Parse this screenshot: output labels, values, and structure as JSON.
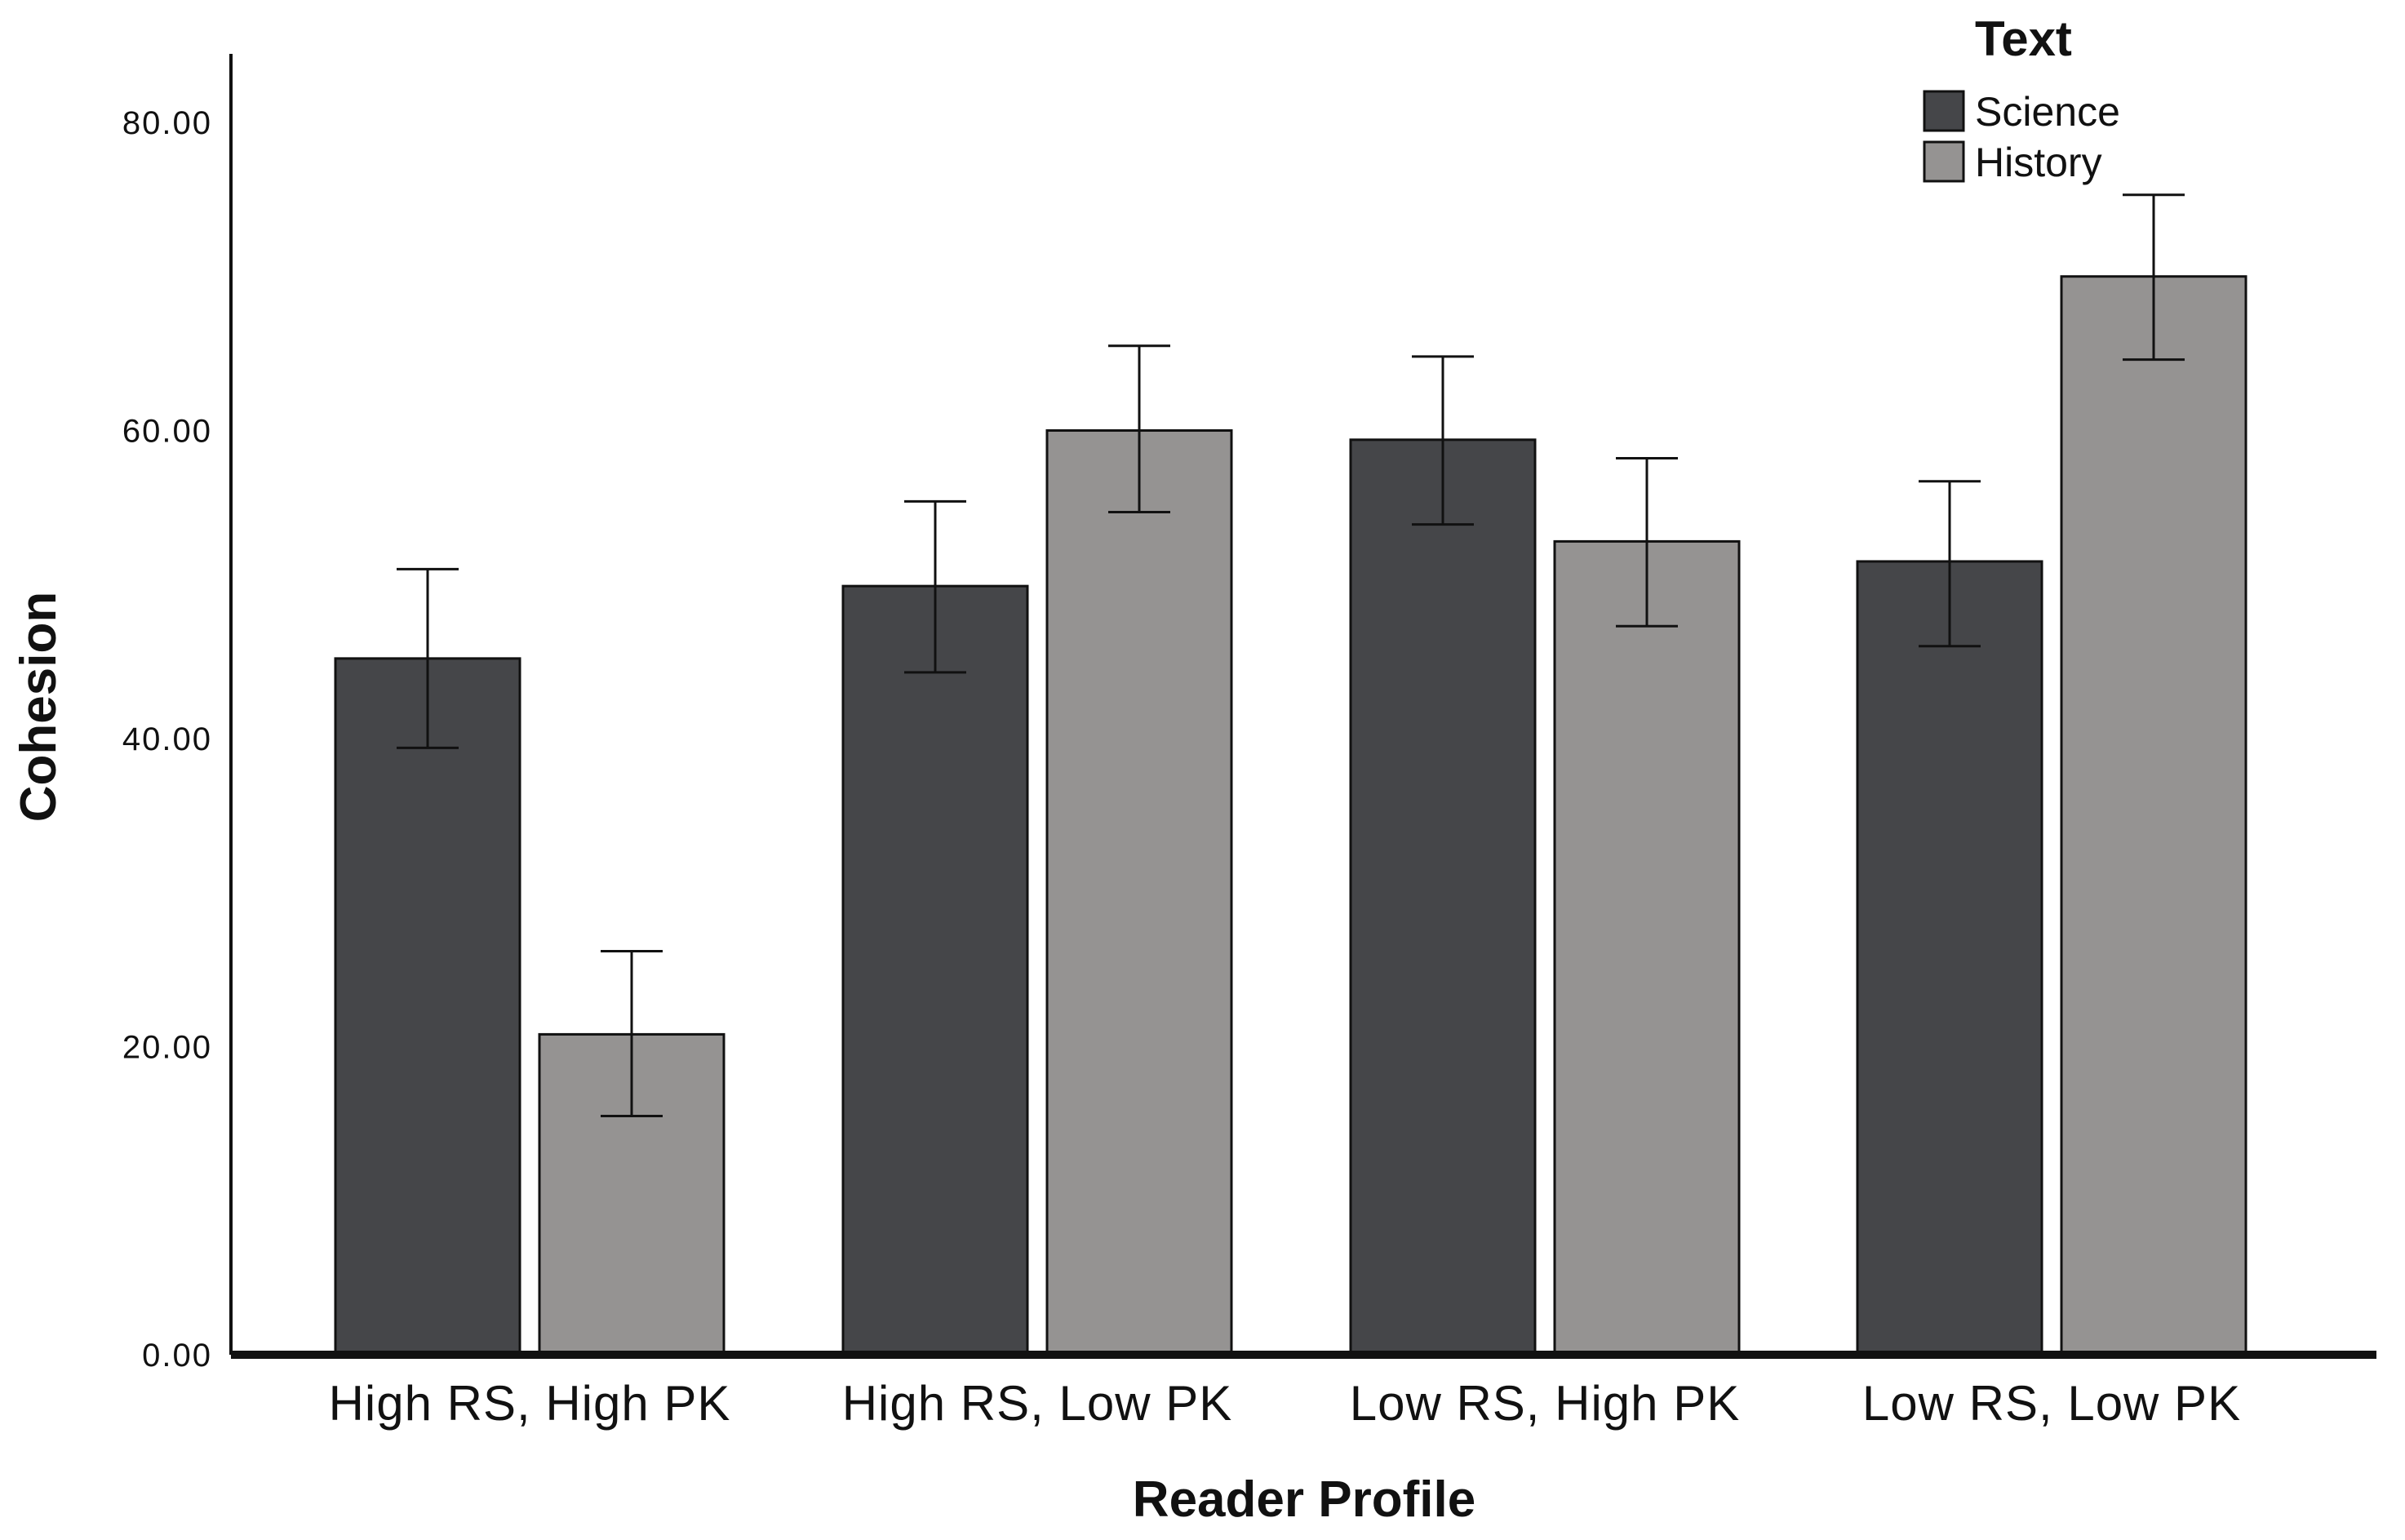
{
  "chart_data": {
    "type": "bar",
    "title": "",
    "xlabel": "Reader Profile",
    "ylabel": "Cohesion",
    "ylim": [
      0,
      85
    ],
    "yticks": [
      0,
      20,
      40,
      60,
      80
    ],
    "ytick_labels": [
      "0.00",
      "20.00",
      "40.00",
      "60.00",
      "80.00"
    ],
    "categories": [
      "High RS, High PK",
      "High RS, Low PK",
      "Low RS, High PK",
      "Low RS, Low PK"
    ],
    "legend": {
      "title": "Text",
      "placement": "top-right"
    },
    "series": [
      {
        "name": "Science",
        "color": "#454649",
        "values": [
          45.2,
          49.9,
          59.4,
          51.5
        ],
        "error_low": [
          39.4,
          44.3,
          53.9,
          46.0
        ],
        "error_high": [
          51.0,
          55.4,
          64.8,
          56.7
        ]
      },
      {
        "name": "History",
        "color": "#959392",
        "values": [
          20.8,
          60.0,
          52.8,
          70.0
        ],
        "error_low": [
          15.5,
          54.7,
          47.3,
          64.6
        ],
        "error_high": [
          26.2,
          65.5,
          58.2,
          75.3
        ]
      }
    ],
    "grid": false,
    "error_bars": true
  }
}
